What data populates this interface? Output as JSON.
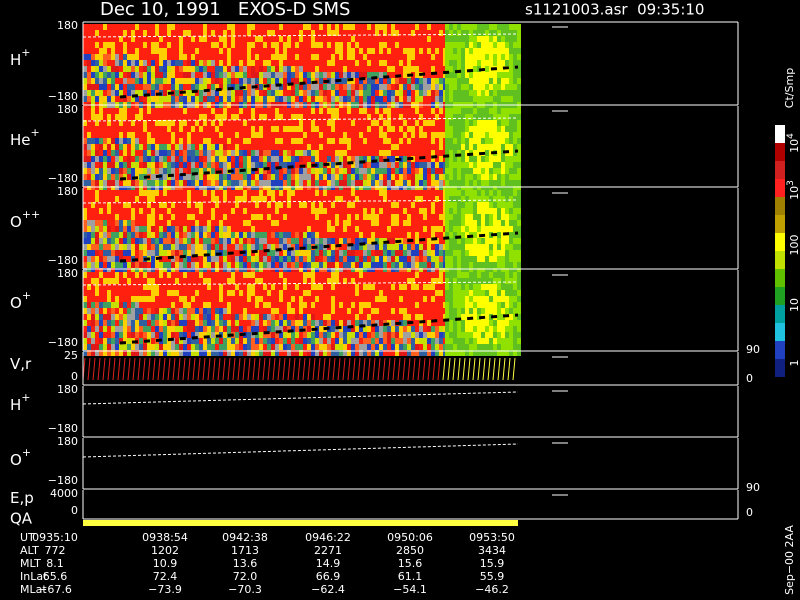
{
  "header": {
    "title": "Dec 10, 1991   EXOS-D SMS",
    "file": "s1121003.asr  09:35:10"
  },
  "panels": [
    {
      "label": "H",
      "sup": "+",
      "ticks": [
        "180",
        "−180"
      ]
    },
    {
      "label": "He",
      "sup": "+",
      "ticks": [
        "180",
        "−180"
      ]
    },
    {
      "label": "O",
      "sup": "++",
      "ticks": [
        "180",
        "−180"
      ]
    },
    {
      "label": "O",
      "sup": "+",
      "ticks": [
        "180",
        "−180"
      ]
    },
    {
      "label": "V,r",
      "ticks": [
        "25",
        "0"
      ],
      "right_ticks": [
        "90",
        "0"
      ]
    },
    {
      "label": "H",
      "sup": "+",
      "ticks": [
        "180",
        "−180"
      ]
    },
    {
      "label": "O",
      "sup": "+",
      "ticks": [
        "180",
        "−180"
      ]
    },
    {
      "label": "E,p",
      "ticks": [
        "4000",
        "0"
      ],
      "right_ticks": [
        "90",
        "0"
      ]
    }
  ],
  "qa_label": "QA",
  "colorbar": {
    "title": "Ct/Smp",
    "labels": [
      {
        "base": "10",
        "exp": "4"
      },
      {
        "base": "10",
        "exp": "3"
      },
      {
        "base": "100"
      },
      {
        "base": "10"
      },
      {
        "base": "1"
      }
    ]
  },
  "footer": "Sep−00 2AA",
  "table": {
    "rows": [
      {
        "label": "UT",
        "values": [
          "0935:10",
          "0938:54",
          "0942:38",
          "0946:22",
          "0950:06",
          "0953:50"
        ]
      },
      {
        "label": "ALT",
        "values": [
          "772",
          "1202",
          "1713",
          "2271",
          "2850",
          "3434"
        ]
      },
      {
        "label": "MLT",
        "values": [
          "8.1",
          "10.9",
          "13.6",
          "14.9",
          "15.6",
          "15.9"
        ]
      },
      {
        "label": "InLat",
        "values": [
          "65.6",
          "72.4",
          "72.0",
          "66.9",
          "61.1",
          "55.9"
        ]
      },
      {
        "label": "MLat",
        "values": [
          "−67.6",
          "−73.9",
          "−70.3",
          "−62.4",
          "−54.1",
          "−46.2"
        ]
      }
    ]
  }
}
